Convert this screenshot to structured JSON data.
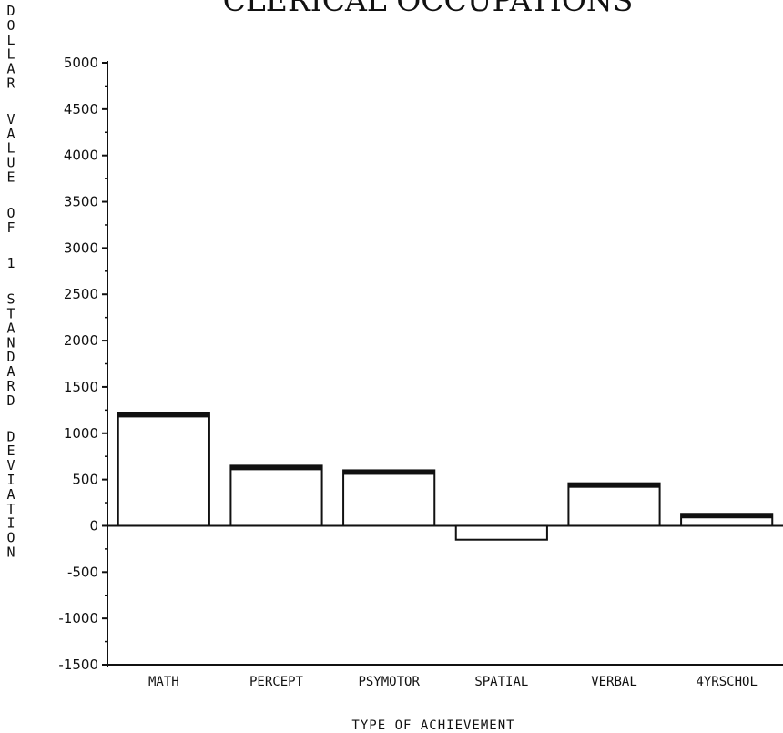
{
  "chart_data": {
    "type": "bar",
    "title": "CLERICAL OCCUPATIONS",
    "ylabel": "DOLLAR VALUE OF 1 STANDARD DEVIATION",
    "xlabel": "TYPE OF ACHIEVEMENT",
    "categories": [
      "MATH",
      "PERCEPT",
      "PSYMOTOR",
      "SPATIAL",
      "VERBAL",
      "4YRSCHOL"
    ],
    "values": [
      1220,
      650,
      600,
      -150,
      460,
      130
    ],
    "ylim": [
      -1500,
      5000
    ],
    "yticks": [
      5000,
      4500,
      4000,
      3500,
      3000,
      2500,
      2000,
      1500,
      1000,
      500,
      0,
      -500,
      -1000,
      -1500
    ],
    "grid": false,
    "colors": {
      "bar_fill": "#ffffff",
      "bar_stroke": "#111111",
      "axis": "#111111"
    }
  }
}
